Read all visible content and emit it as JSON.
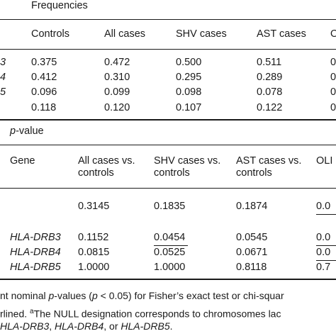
{
  "freq": {
    "heading": "Frequencies",
    "columns": [
      "Controls",
      "All cases",
      "SHV cases",
      "AST cases",
      "O"
    ],
    "rows": [
      {
        "gene": "3",
        "values": [
          "0.375",
          "0.472",
          "0.500",
          "0.511",
          "0"
        ]
      },
      {
        "gene": "4",
        "values": [
          "0.412",
          "0.310",
          "0.295",
          "0.289",
          "0"
        ]
      },
      {
        "gene": "5",
        "values": [
          "0.096",
          "0.099",
          "0.098",
          "0.078",
          "0"
        ]
      },
      {
        "gene": "",
        "values": [
          "0.118",
          "0.120",
          "0.107",
          "0.122",
          "0"
        ]
      }
    ]
  },
  "pval": {
    "heading_var": "p",
    "heading_rest": "-value",
    "gene_header": "Gene",
    "columns": [
      {
        "line1": "All cases vs.",
        "line2": "controls"
      },
      {
        "line1": "SHV cases vs.",
        "line2": "controls"
      },
      {
        "line1": "AST cases vs.",
        "line2": "controls"
      },
      {
        "line1": "OLI",
        "line2": ""
      }
    ],
    "rows": [
      {
        "gene": "",
        "values": [
          "0.3145",
          "0.1835",
          "0.1874",
          "0.0"
        ]
      },
      {
        "gene": "HLA-DRB3",
        "values": [
          "0.1152",
          "0.0454",
          "0.0545",
          "0.0"
        ]
      },
      {
        "gene": "HLA-DRB4",
        "values": [
          "0.0815",
          "0.0525",
          "0.0671",
          "0.0"
        ]
      },
      {
        "gene": "HLA-DRB5",
        "values": [
          "1.0000",
          "1.0000",
          "0.8118",
          "0.7"
        ]
      }
    ]
  },
  "footnote": {
    "line1_a": "nt nominal ",
    "line1_var": "p",
    "line1_b": "-values (",
    "line1_var2": "p",
    "line1_c": " < 0.05) for Fisher’s exact test or chi-squar",
    "line2_a": "rlined. ",
    "line2_sup": "a",
    "line2_b": "The NULL designation corresponds to chromosomes lac",
    "line3_g1": "HLA-DRB3",
    "line3_sep1": ", ",
    "line3_g2": "HLA-DRB4",
    "line3_sep2": ", or ",
    "line3_g3": "HLA-DRB5",
    "line3_end": "."
  }
}
